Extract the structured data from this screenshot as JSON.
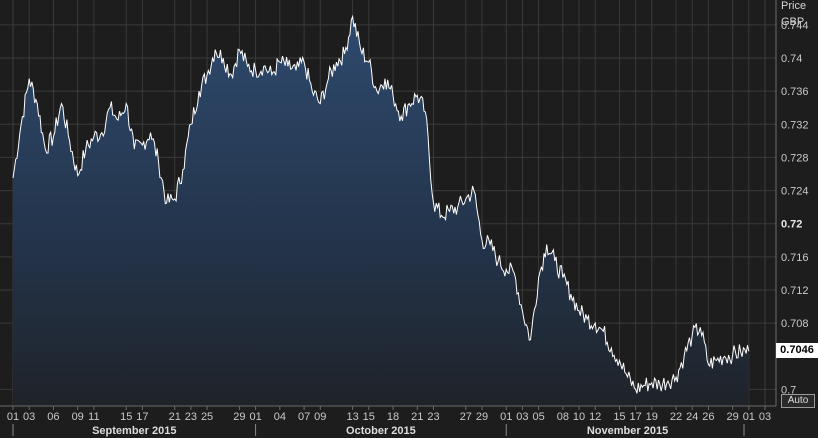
{
  "chart_data": {
    "type": "area",
    "ylabel": "Price",
    "yunit": "GBP",
    "ylim": [
      0.698,
      0.747
    ],
    "y_ticks": [
      "0.744",
      "0.74",
      "0.736",
      "0.732",
      "0.728",
      "0.724",
      "0.72",
      "0.716",
      "0.712",
      "0.708",
      "0.7"
    ],
    "y_tick_values": [
      0.744,
      0.74,
      0.736,
      0.732,
      0.728,
      0.724,
      0.72,
      0.716,
      0.712,
      0.708,
      0.7
    ],
    "bold_tick": "0.72",
    "last_value_label": "0.7046",
    "last_value": 0.7046,
    "xlim": [
      "2015-09-01",
      "2015-12-03"
    ],
    "x_ticks": [
      {
        "label": "01",
        "date": "2015-09-01"
      },
      {
        "label": "03",
        "date": "2015-09-03"
      },
      {
        "label": "06",
        "date": "2015-09-06"
      },
      {
        "label": "09",
        "date": "2015-09-09"
      },
      {
        "label": "11",
        "date": "2015-09-11"
      },
      {
        "label": "15",
        "date": "2015-09-15"
      },
      {
        "label": "17",
        "date": "2015-09-17"
      },
      {
        "label": "21",
        "date": "2015-09-21"
      },
      {
        "label": "23",
        "date": "2015-09-23"
      },
      {
        "label": "25",
        "date": "2015-09-25"
      },
      {
        "label": "29",
        "date": "2015-09-29"
      },
      {
        "label": "01",
        "date": "2015-10-01"
      },
      {
        "label": "04",
        "date": "2015-10-04"
      },
      {
        "label": "07",
        "date": "2015-10-07"
      },
      {
        "label": "09",
        "date": "2015-10-09"
      },
      {
        "label": "13",
        "date": "2015-10-13"
      },
      {
        "label": "15",
        "date": "2015-10-15"
      },
      {
        "label": "18",
        "date": "2015-10-18"
      },
      {
        "label": "21",
        "date": "2015-10-21"
      },
      {
        "label": "23",
        "date": "2015-10-23"
      },
      {
        "label": "27",
        "date": "2015-10-27"
      },
      {
        "label": "29",
        "date": "2015-10-29"
      },
      {
        "label": "01",
        "date": "2015-11-01"
      },
      {
        "label": "03",
        "date": "2015-11-03"
      },
      {
        "label": "05",
        "date": "2015-11-05"
      },
      {
        "label": "08",
        "date": "2015-11-08"
      },
      {
        "label": "10",
        "date": "2015-11-10"
      },
      {
        "label": "12",
        "date": "2015-11-12"
      },
      {
        "label": "15",
        "date": "2015-11-15"
      },
      {
        "label": "17",
        "date": "2015-11-17"
      },
      {
        "label": "19",
        "date": "2015-11-19"
      },
      {
        "label": "22",
        "date": "2015-11-22"
      },
      {
        "label": "24",
        "date": "2015-11-24"
      },
      {
        "label": "26",
        "date": "2015-11-26"
      },
      {
        "label": "29",
        "date": "2015-11-29"
      },
      {
        "label": "01",
        "date": "2015-12-01"
      },
      {
        "label": "03",
        "date": "2015-12-03"
      }
    ],
    "months": [
      {
        "label": "September 2015",
        "start": "2015-09-01",
        "end": "2015-10-01"
      },
      {
        "label": "October 2015",
        "start": "2015-10-01",
        "end": "2015-11-01"
      },
      {
        "label": "November 2015",
        "start": "2015-11-01",
        "end": "2015-12-01"
      }
    ],
    "grid": true,
    "series": [
      {
        "x": [
          "2015-09-01",
          "2015-09-02",
          "2015-09-03",
          "2015-09-04",
          "2015-09-05",
          "2015-09-06",
          "2015-09-07",
          "2015-09-08",
          "2015-09-09",
          "2015-09-10",
          "2015-09-11",
          "2015-09-12",
          "2015-09-13",
          "2015-09-14",
          "2015-09-15",
          "2015-09-16",
          "2015-09-17",
          "2015-09-18",
          "2015-09-19",
          "2015-09-20",
          "2015-09-21",
          "2015-09-22",
          "2015-09-23",
          "2015-09-24",
          "2015-09-25",
          "2015-09-26",
          "2015-09-27",
          "2015-09-28",
          "2015-09-29",
          "2015-09-30",
          "2015-10-01",
          "2015-10-02",
          "2015-10-03",
          "2015-10-04",
          "2015-10-05",
          "2015-10-06",
          "2015-10-07",
          "2015-10-08",
          "2015-10-09",
          "2015-10-10",
          "2015-10-11",
          "2015-10-12",
          "2015-10-13",
          "2015-10-14",
          "2015-10-15",
          "2015-10-16",
          "2015-10-17",
          "2015-10-18",
          "2015-10-19",
          "2015-10-20",
          "2015-10-21",
          "2015-10-22",
          "2015-10-23",
          "2015-10-24",
          "2015-10-25",
          "2015-10-26",
          "2015-10-27",
          "2015-10-28",
          "2015-10-29",
          "2015-10-30",
          "2015-10-31",
          "2015-11-01",
          "2015-11-02",
          "2015-11-03",
          "2015-11-04",
          "2015-11-05",
          "2015-11-06",
          "2015-11-07",
          "2015-11-08",
          "2015-11-09",
          "2015-11-10",
          "2015-11-11",
          "2015-11-12",
          "2015-11-13",
          "2015-11-14",
          "2015-11-15",
          "2015-11-16",
          "2015-11-17",
          "2015-11-18",
          "2015-11-19",
          "2015-11-20",
          "2015-11-21",
          "2015-11-22",
          "2015-11-23",
          "2015-11-24",
          "2015-11-25",
          "2015-11-26",
          "2015-11-27",
          "2015-11-28",
          "2015-11-29",
          "2015-11-30",
          "2015-12-01"
        ],
        "y": [
          0.7255,
          0.732,
          0.7375,
          0.7345,
          0.729,
          0.7305,
          0.7345,
          0.73,
          0.7258,
          0.729,
          0.7305,
          0.731,
          0.734,
          0.7325,
          0.7345,
          0.729,
          0.7295,
          0.731,
          0.7275,
          0.7225,
          0.723,
          0.7265,
          0.732,
          0.736,
          0.738,
          0.741,
          0.74,
          0.738,
          0.741,
          0.739,
          0.7385,
          0.739,
          0.738,
          0.7395,
          0.739,
          0.7385,
          0.7395,
          0.736,
          0.7345,
          0.7375,
          0.7395,
          0.7405,
          0.745,
          0.741,
          0.7395,
          0.736,
          0.7375,
          0.7355,
          0.733,
          0.7345,
          0.7355,
          0.7335,
          0.7225,
          0.721,
          0.7215,
          0.722,
          0.723,
          0.724,
          0.718,
          0.7175,
          0.7155,
          0.7145,
          0.714,
          0.7095,
          0.706,
          0.7135,
          0.7175,
          0.7155,
          0.7135,
          0.7115,
          0.7095,
          0.7085,
          0.708,
          0.707,
          0.705,
          0.7035,
          0.7015,
          0.7,
          0.7005,
          0.7008,
          0.7006,
          0.701,
          0.7015,
          0.704,
          0.7065,
          0.7075,
          0.703,
          0.7035,
          0.704,
          0.7042,
          0.7045,
          0.7046
        ]
      }
    ]
  }
}
